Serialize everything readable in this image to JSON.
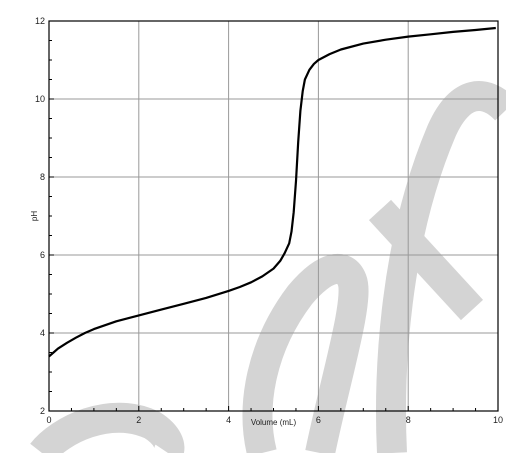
{
  "chart_data": {
    "type": "line",
    "title": "",
    "xlabel": "Volume (mL)",
    "ylabel": "pH",
    "xlim": [
      0,
      10
    ],
    "ylim": [
      2,
      12
    ],
    "grid": true,
    "x_ticks": [
      "0",
      "2",
      "4",
      "6",
      "8",
      "10"
    ],
    "y_ticks": [
      "2",
      "4",
      "6",
      "8",
      "10",
      "12"
    ],
    "series": [
      {
        "color": "#000000",
        "x": [
          0,
          0.1,
          0.2,
          0.4,
          0.6,
          0.8,
          1.0,
          1.25,
          1.5,
          2.0,
          2.5,
          3.0,
          3.5,
          4.0,
          4.25,
          4.5,
          4.75,
          5.0,
          5.15,
          5.25,
          5.35,
          5.4,
          5.45,
          5.5,
          5.55,
          5.6,
          5.65,
          5.7,
          5.8,
          5.9,
          6.0,
          6.25,
          6.5,
          7.0,
          7.5,
          8.0,
          8.5,
          9.0,
          9.5,
          9.95
        ],
        "y": [
          3.4,
          3.5,
          3.6,
          3.75,
          3.88,
          4.0,
          4.1,
          4.2,
          4.3,
          4.45,
          4.6,
          4.75,
          4.9,
          5.08,
          5.18,
          5.3,
          5.45,
          5.65,
          5.85,
          6.05,
          6.3,
          6.6,
          7.1,
          7.9,
          8.9,
          9.7,
          10.2,
          10.5,
          10.75,
          10.9,
          11.0,
          11.15,
          11.27,
          11.42,
          11.52,
          11.6,
          11.66,
          11.72,
          11.77,
          11.82
        ]
      }
    ]
  },
  "colors": {
    "grid": "#999999",
    "frame": "#000000",
    "watermark": "#d4d4d4"
  }
}
